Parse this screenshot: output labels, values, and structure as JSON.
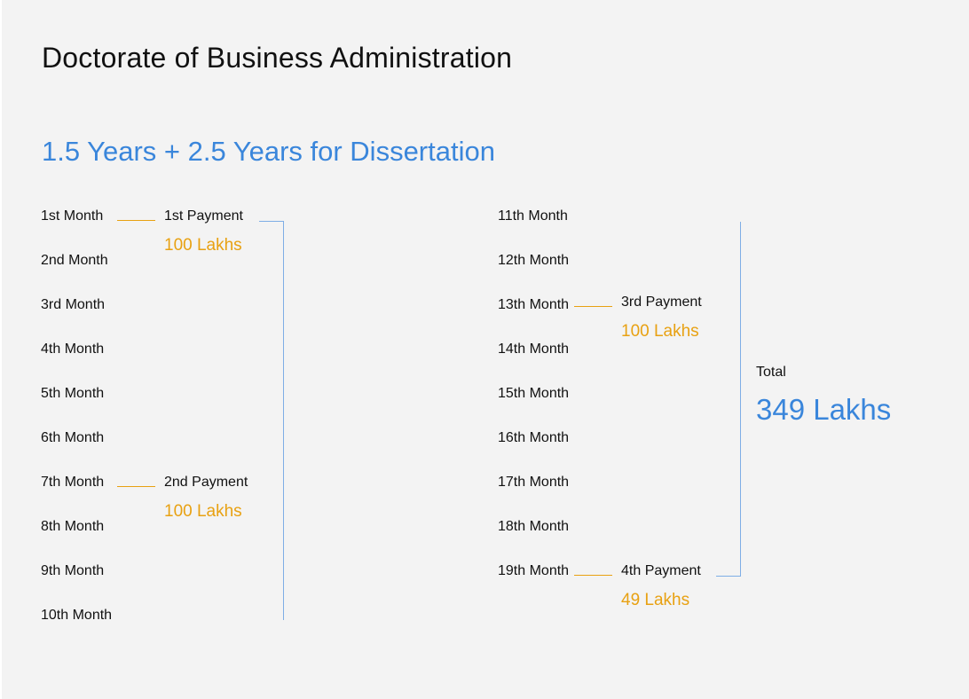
{
  "title": "Doctorate of Business Administration",
  "subtitle": "1.5 Years + 2.5 Years for Dissertation",
  "left_months": [
    "1st Month",
    "2nd Month",
    "3rd Month",
    "4th Month",
    "5th Month",
    "6th Month",
    "7th Month",
    "8th Month",
    "9th Month",
    "10th Month"
  ],
  "right_months": [
    "11th Month",
    "12th Month",
    "13th Month",
    "14th Month",
    "15th Month",
    "16th Month",
    "17th Month",
    "18th Month",
    "19th Month"
  ],
  "payments": [
    {
      "label": "1st Payment",
      "amount": "100 Lakhs"
    },
    {
      "label": "2nd Payment",
      "amount": "100 Lakhs"
    },
    {
      "label": "3rd Payment",
      "amount": "100 Lakhs"
    },
    {
      "label": "4th Payment",
      "amount": "49 Lakhs"
    }
  ],
  "total": {
    "label": "Total",
    "value": "349 Lakhs"
  },
  "colors": {
    "accent_blue": "#3a86db",
    "payment_orange": "#e8a112",
    "bracket_blue": "#7eaee6",
    "background": "#f3f3f3"
  }
}
